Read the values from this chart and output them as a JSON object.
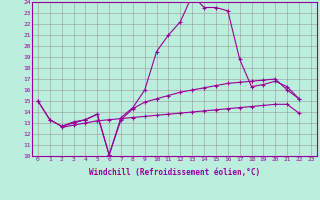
{
  "x": [
    0,
    1,
    2,
    3,
    4,
    5,
    6,
    7,
    8,
    9,
    10,
    11,
    12,
    13,
    14,
    15,
    16,
    17,
    18,
    19,
    20,
    21,
    22,
    23
  ],
  "line1": [
    15.0,
    13.3,
    12.7,
    13.0,
    13.3,
    13.8,
    10.1,
    13.5,
    14.4,
    16.0,
    19.5,
    21.0,
    22.2,
    24.6,
    23.5,
    23.5,
    23.2,
    18.8,
    16.3,
    16.5,
    16.8,
    16.3,
    15.2,
    null
  ],
  "line2": [
    15.0,
    13.3,
    12.7,
    13.1,
    13.3,
    13.8,
    10.1,
    13.3,
    14.3,
    14.9,
    15.2,
    15.5,
    15.8,
    16.0,
    16.2,
    16.4,
    16.6,
    16.7,
    16.8,
    16.9,
    17.0,
    16.0,
    15.2,
    null
  ],
  "line3": [
    null,
    null,
    12.6,
    12.8,
    13.0,
    13.2,
    13.3,
    13.4,
    13.5,
    13.6,
    13.7,
    13.8,
    13.9,
    14.0,
    14.1,
    14.2,
    14.3,
    14.4,
    14.5,
    14.6,
    14.7,
    14.7,
    13.9,
    null
  ],
  "color": "#990099",
  "bg_color": "#bbeedd",
  "grid_color": "#999999",
  "xlim": [
    -0.5,
    23.5
  ],
  "ylim": [
    10,
    24
  ],
  "yticks": [
    10,
    11,
    12,
    13,
    14,
    15,
    16,
    17,
    18,
    19,
    20,
    21,
    22,
    23,
    24
  ],
  "xticks": [
    0,
    1,
    2,
    3,
    4,
    5,
    6,
    7,
    8,
    9,
    10,
    11,
    12,
    13,
    14,
    15,
    16,
    17,
    18,
    19,
    20,
    21,
    22,
    23
  ],
  "xlabel": "Windchill (Refroidissement éolien,°C)",
  "marker": "+",
  "markersize": 3,
  "linewidth": 0.8,
  "tick_fontsize": 4.5,
  "xlabel_fontsize": 5.5
}
